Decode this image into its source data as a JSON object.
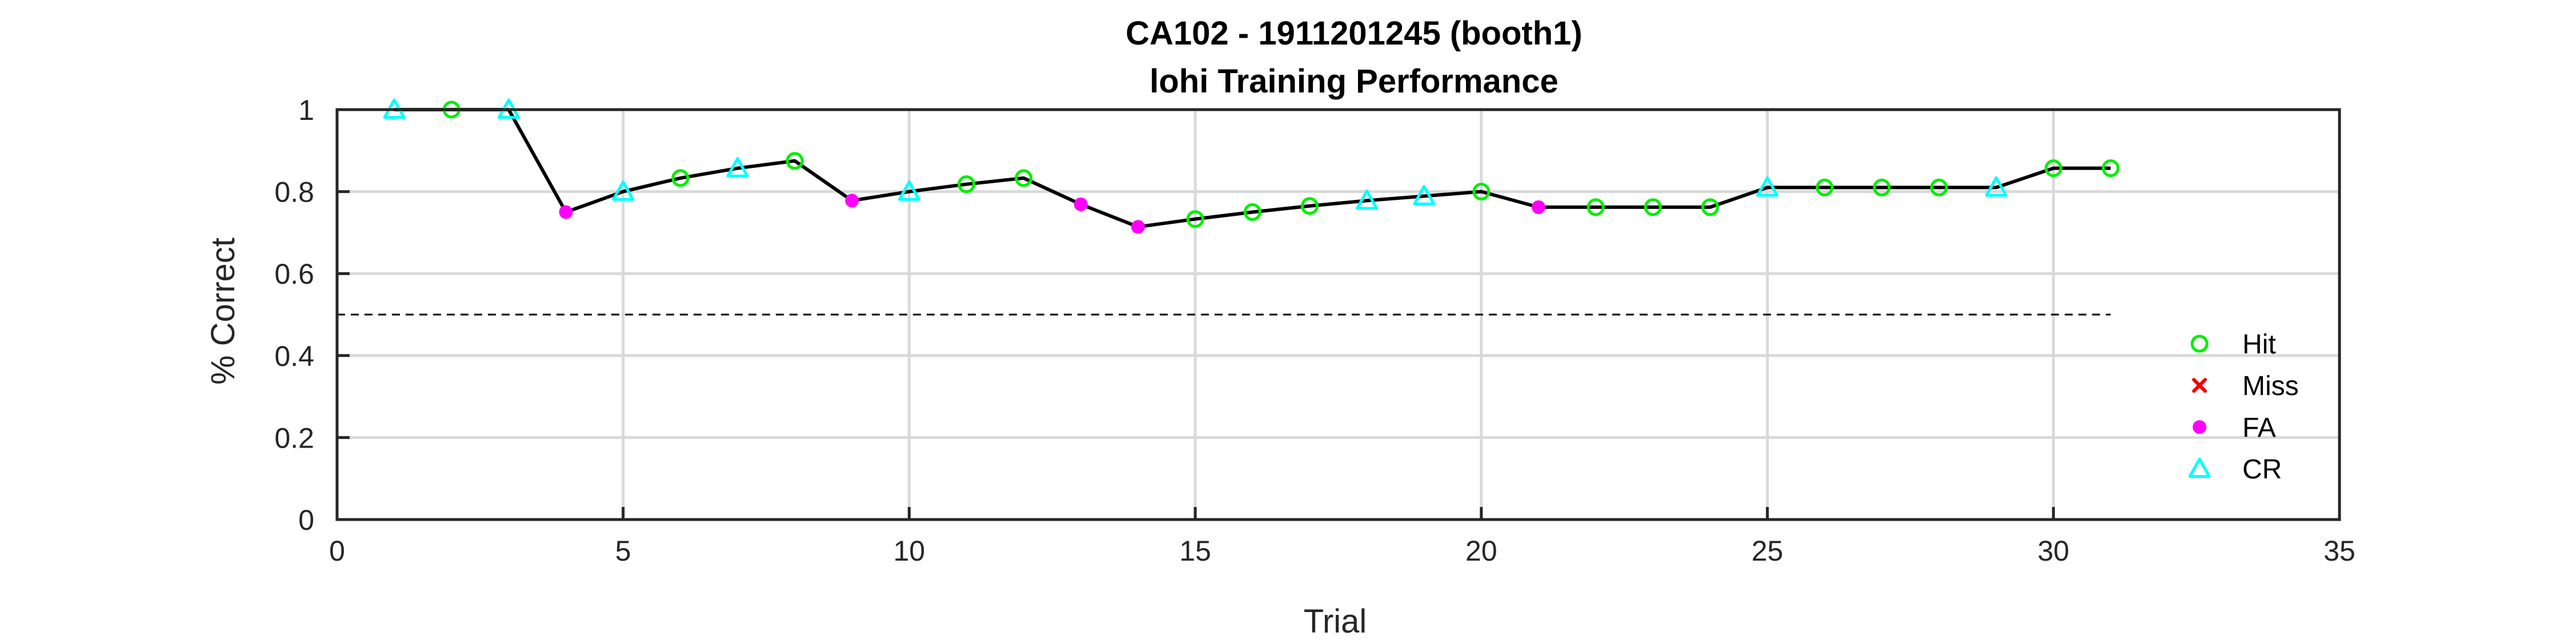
{
  "chart_data": {
    "type": "line",
    "title": "CA102 - 1911201245 (booth1)",
    "subtitle": "lohi Training Performance",
    "xlabel": "Trial",
    "ylabel": "% Correct",
    "xlim": [
      0,
      35
    ],
    "ylim": [
      0,
      1
    ],
    "xticks": [
      0,
      5,
      10,
      15,
      20,
      25,
      30,
      35
    ],
    "yticks": [
      0,
      0.2,
      0.4,
      0.6,
      0.8,
      1
    ],
    "grid": true,
    "legend_position": "right",
    "chance_line": {
      "y": 0.5,
      "x_range": [
        0,
        31
      ],
      "style": "dashed"
    },
    "legend": [
      {
        "name": "Hit",
        "marker": "circle",
        "color": "#00ee00"
      },
      {
        "name": "Miss",
        "marker": "x",
        "color": "#ee0000"
      },
      {
        "name": "FA",
        "marker": "dot",
        "color": "#ff00ff"
      },
      {
        "name": "CR",
        "marker": "triangle",
        "color": "#00ffff"
      }
    ],
    "points": [
      {
        "x": 1,
        "y": 1.0,
        "outcome": "CR"
      },
      {
        "x": 2,
        "y": 1.0,
        "outcome": "Hit"
      },
      {
        "x": 3,
        "y": 1.0,
        "outcome": "CR"
      },
      {
        "x": 4,
        "y": 0.75,
        "outcome": "FA"
      },
      {
        "x": 5,
        "y": 0.8,
        "outcome": "CR"
      },
      {
        "x": 6,
        "y": 0.833,
        "outcome": "Hit"
      },
      {
        "x": 7,
        "y": 0.857,
        "outcome": "CR"
      },
      {
        "x": 8,
        "y": 0.875,
        "outcome": "Hit"
      },
      {
        "x": 9,
        "y": 0.778,
        "outcome": "FA"
      },
      {
        "x": 10,
        "y": 0.8,
        "outcome": "CR"
      },
      {
        "x": 11,
        "y": 0.818,
        "outcome": "Hit"
      },
      {
        "x": 12,
        "y": 0.833,
        "outcome": "Hit"
      },
      {
        "x": 13,
        "y": 0.769,
        "outcome": "FA"
      },
      {
        "x": 14,
        "y": 0.714,
        "outcome": "FA"
      },
      {
        "x": 15,
        "y": 0.733,
        "outcome": "Hit"
      },
      {
        "x": 16,
        "y": 0.75,
        "outcome": "Hit"
      },
      {
        "x": 17,
        "y": 0.765,
        "outcome": "Hit"
      },
      {
        "x": 18,
        "y": 0.778,
        "outcome": "CR"
      },
      {
        "x": 19,
        "y": 0.789,
        "outcome": "CR"
      },
      {
        "x": 20,
        "y": 0.8,
        "outcome": "Hit"
      },
      {
        "x": 21,
        "y": 0.762,
        "outcome": "FA"
      },
      {
        "x": 22,
        "y": 0.762,
        "outcome": "Hit"
      },
      {
        "x": 23,
        "y": 0.762,
        "outcome": "Hit"
      },
      {
        "x": 24,
        "y": 0.762,
        "outcome": "Hit"
      },
      {
        "x": 25,
        "y": 0.81,
        "outcome": "CR"
      },
      {
        "x": 26,
        "y": 0.81,
        "outcome": "Hit"
      },
      {
        "x": 27,
        "y": 0.81,
        "outcome": "Hit"
      },
      {
        "x": 28,
        "y": 0.81,
        "outcome": "Hit"
      },
      {
        "x": 29,
        "y": 0.81,
        "outcome": "CR"
      },
      {
        "x": 30,
        "y": 0.857,
        "outcome": "Hit"
      },
      {
        "x": 31,
        "y": 0.857,
        "outcome": "Hit"
      }
    ]
  }
}
